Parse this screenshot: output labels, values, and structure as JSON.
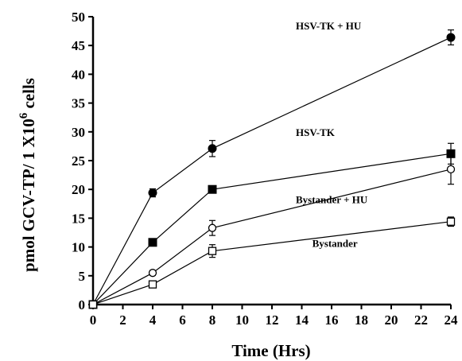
{
  "chart_data": {
    "type": "line",
    "title": "",
    "xlabel": "Time (Hrs)",
    "ylabel_main": "pmol GCV-TP/ 1 X10",
    "ylabel_sup": "6",
    "ylabel_tail": " cells",
    "xlim": [
      0,
      24
    ],
    "ylim": [
      0,
      50
    ],
    "x_ticks": [
      0,
      2,
      4,
      6,
      8,
      10,
      12,
      14,
      16,
      18,
      20,
      22,
      24
    ],
    "y_ticks": [
      0,
      5,
      10,
      15,
      20,
      25,
      30,
      35,
      40,
      45,
      50
    ],
    "grid": false,
    "series": [
      {
        "name": "HSV-TK + HU",
        "marker": "filled-circle",
        "x": [
          0,
          4,
          8,
          24
        ],
        "y": [
          0,
          19.4,
          27.1,
          46.4
        ],
        "error": [
          0,
          0.7,
          1.4,
          1.3
        ]
      },
      {
        "name": "HSV-TK",
        "marker": "filled-square",
        "x": [
          0,
          4,
          8,
          24
        ],
        "y": [
          0,
          10.8,
          20.0,
          26.2
        ],
        "error": [
          0,
          0.4,
          0.5,
          1.8
        ]
      },
      {
        "name": "Bystander + HU",
        "marker": "open-circle",
        "x": [
          0,
          4,
          8,
          24
        ],
        "y": [
          0,
          5.5,
          13.3,
          23.5
        ],
        "error": [
          0,
          0.4,
          1.3,
          2.6
        ]
      },
      {
        "name": "Bystander",
        "marker": "open-square",
        "x": [
          0,
          4,
          8,
          24
        ],
        "y": [
          0,
          3.5,
          9.3,
          14.4
        ],
        "error": [
          0,
          0.5,
          1.1,
          0.8
        ]
      }
    ]
  }
}
